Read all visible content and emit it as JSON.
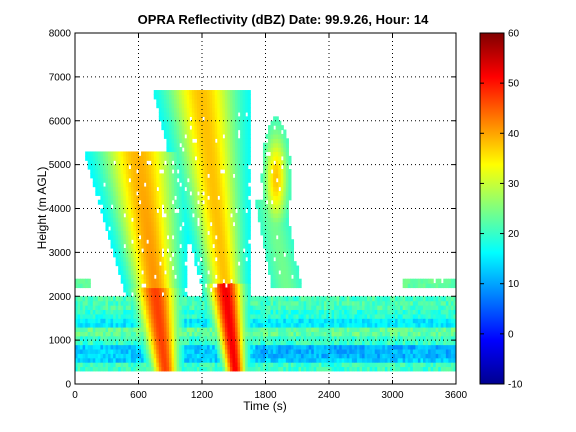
{
  "chart_data": {
    "type": "heatmap",
    "title": "OPRA Reflectivity (dBZ)  Date: 99.9.26, Hour: 14",
    "xlabel": "Time (s)",
    "ylabel": "Height (m AGL)",
    "xlim": [
      0,
      3600
    ],
    "ylim": [
      0,
      8000
    ],
    "xticks": [
      0,
      600,
      1200,
      1800,
      2400,
      3000,
      3600
    ],
    "yticks": [
      0,
      1000,
      2000,
      3000,
      4000,
      5000,
      6000,
      7000,
      8000
    ],
    "colorbar": {
      "min": -10,
      "max": 60,
      "ticks": [
        -10,
        0,
        10,
        20,
        30,
        40,
        50,
        60
      ],
      "colormap": "jet"
    },
    "grid": true,
    "data_extent": {
      "height_min": 300,
      "height_max": 6600
    },
    "features": [
      {
        "name": "low-level layer",
        "height_range": [
          300,
          2000
        ],
        "time_range": [
          0,
          3600
        ],
        "dbz": 18
      },
      {
        "name": "upper layer",
        "height_range": [
          2400,
          2600
        ],
        "time_range": [
          3100,
          3600
        ],
        "dbz": 22
      },
      {
        "name": "precip shaft 1",
        "time_at_ground": 870,
        "time_at_top": 600,
        "top_height": 5200,
        "peak_dbz": 42
      },
      {
        "name": "precip shaft 2",
        "time_at_ground": 1530,
        "time_at_top": 1200,
        "top_height": 6600,
        "peak_dbz": 46
      },
      {
        "name": "upper cell",
        "time_center": 1900,
        "height_center": 4500,
        "peak_dbz": 35
      }
    ]
  }
}
